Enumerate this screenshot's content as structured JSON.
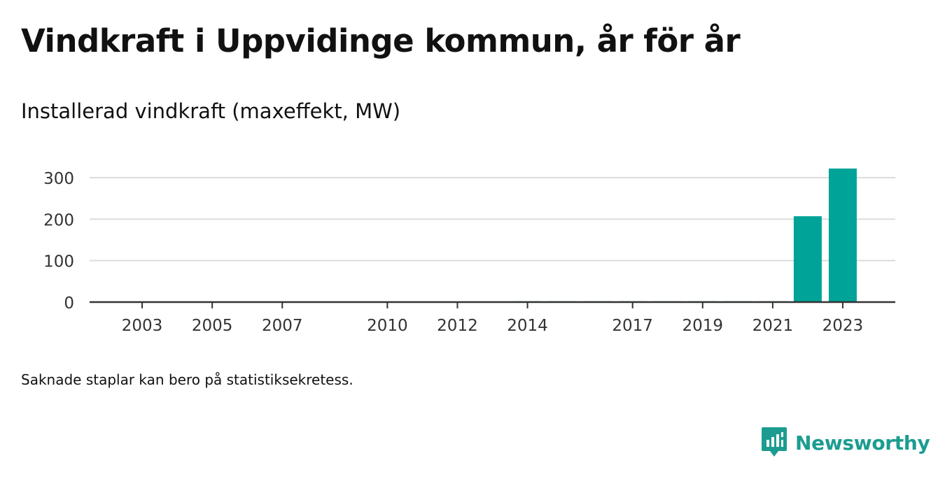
{
  "title": "Vindkraft i Uppvidinge kommun, år för år",
  "subtitle": "Installerad vindkraft (maxeffekt, MW)",
  "note": "Saknade staplar kan bero på statistiksekretess.",
  "brand": {
    "name": "Newsworthy",
    "logo_icon": "bar-chart-speech-bubble-icon",
    "color": "#1c9c91"
  },
  "chart_data": {
    "type": "bar",
    "x": [
      2014,
      2015,
      2016,
      2017,
      2018,
      2019,
      2020,
      2021,
      2022,
      2023
    ],
    "values": [
      2,
      2,
      2,
      2,
      2,
      2,
      2,
      2,
      207,
      322
    ],
    "xticks": [
      2003,
      2005,
      2007,
      2010,
      2012,
      2014,
      2017,
      2019,
      2021,
      2023
    ],
    "xlim": [
      2001.5,
      2024.5
    ],
    "yticks": [
      0,
      100,
      200,
      300
    ],
    "ylim": [
      0,
      322
    ],
    "grid": true,
    "bar_color": "#00a398",
    "grid_color": "#dcdcdc",
    "axis_color": "#333333"
  }
}
